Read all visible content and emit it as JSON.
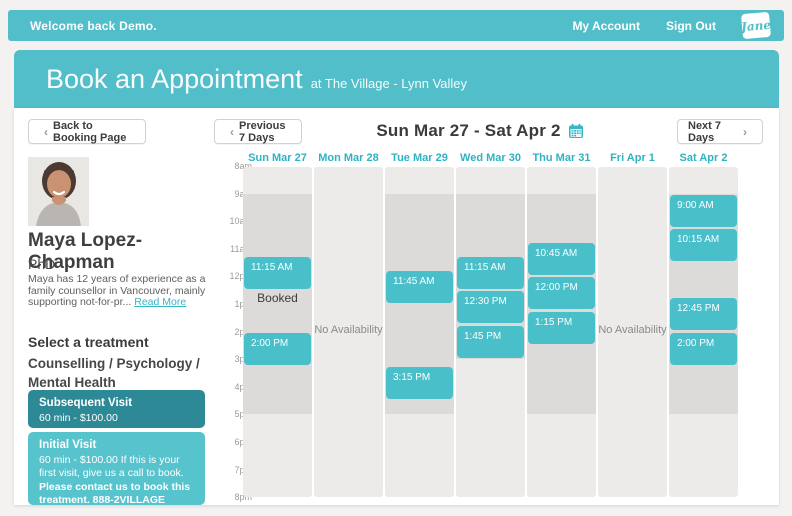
{
  "colors": {
    "accent": "#52bec9",
    "accent_dark": "#2d8995",
    "slot": "#49bfca",
    "day_header_text": "#2fb3c2",
    "shaded_column": "#dcdbd9",
    "column_bg": "#ecebe9"
  },
  "topbar": {
    "welcome": "Welcome back Demo.",
    "my_account": "My Account",
    "sign_out": "Sign Out",
    "logo_text": "Jane"
  },
  "banner": {
    "title": "Book an Appointment",
    "subtitle": "at The Village - Lynn Valley"
  },
  "toolbar": {
    "back_chevron": "‹",
    "back_label": "Back to Booking Page",
    "prev_chevron": "‹",
    "prev_label": "Previous 7 Days",
    "range_label": "Sun Mar 27 - Sat Apr 2",
    "calendar_icon": "calendar-icon",
    "next_label": "Next 7 Days",
    "next_chevron": "›"
  },
  "practitioner": {
    "name": "Maya Lopez-Chapman",
    "credential": "PhD",
    "bio": "Maya has 12 years of experience as a family counsellor in Vancouver, mainly supporting not-for-pr...",
    "read_more": "Read More"
  },
  "treatments": {
    "heading": "Select a treatment",
    "category": "Counselling / Psychology / Mental Health",
    "items": [
      {
        "name": "Subsequent Visit",
        "detail": "60 min - $100.00",
        "selected": true
      },
      {
        "name": "Initial Visit",
        "detail": "60 min - $100.00 If this is your first visit, give us a call to book.",
        "note": "Please contact us to book this treatment. 888-2VILLAGE",
        "selected": false
      }
    ]
  },
  "calendar": {
    "time_labels": [
      "8am",
      "9am",
      "10am",
      "11am",
      "12pm",
      "1pm",
      "2pm",
      "3pm",
      "4pm",
      "5pm",
      "6pm",
      "7pm",
      "8pm"
    ],
    "slot_duration_minutes": 75,
    "days": [
      {
        "label": "Sun Mar 27",
        "shaded_hours": [
          9,
          17
        ],
        "slots": [
          "11:15 AM",
          "2:00 PM"
        ],
        "booked": {
          "label": "Booked",
          "time": "12:15 PM"
        }
      },
      {
        "label": "Mon Mar 28",
        "no_availability": "No Availability"
      },
      {
        "label": "Tue Mar 29",
        "shaded_hours": [
          9,
          17
        ],
        "slots": [
          "11:45 AM",
          "3:15 PM"
        ]
      },
      {
        "label": "Wed Mar 30",
        "shaded_hours": [
          9,
          15
        ],
        "slots": [
          "11:15 AM",
          "12:30 PM",
          "1:45 PM"
        ]
      },
      {
        "label": "Thu Mar 31",
        "shaded_hours": [
          9,
          17
        ],
        "slots": [
          "10:45 AM",
          "12:00 PM",
          "1:15 PM"
        ]
      },
      {
        "label": "Fri Apr 1",
        "no_availability": "No Availability"
      },
      {
        "label": "Sat Apr 2",
        "shaded_hours": [
          9,
          17
        ],
        "slots": [
          "9:00 AM",
          "10:15 AM",
          "12:45 PM",
          "2:00 PM"
        ]
      }
    ]
  }
}
